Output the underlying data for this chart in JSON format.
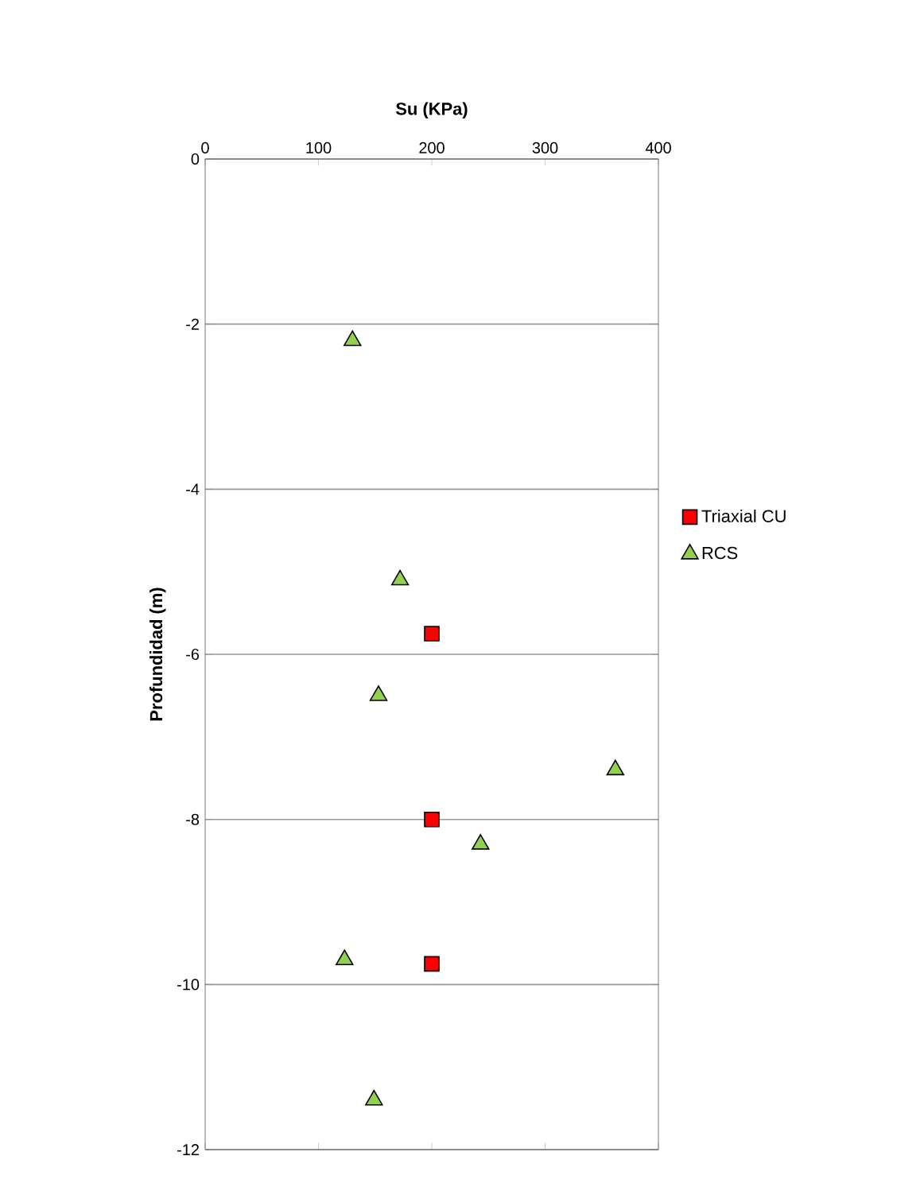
{
  "chart_data": {
    "type": "scatter",
    "xlabel": "Su (KPa)",
    "ylabel": "Profundidad (m)",
    "xlim": [
      0,
      400
    ],
    "xticks": [
      0,
      100,
      200,
      300,
      400
    ],
    "ylim": [
      -12,
      0
    ],
    "yticks": [
      -12,
      -10,
      -8,
      -6,
      -4,
      -2,
      0
    ],
    "grid": "y",
    "legend": "right",
    "series": [
      {
        "name": "Triaxial CU",
        "color": "#ff0000",
        "marker": "square",
        "x": [
          200,
          200,
          200
        ],
        "values": [
          -5.75,
          -8,
          -9.75
        ]
      },
      {
        "name": "RCS",
        "color": "#92d050",
        "marker": "triangle",
        "x": [
          130,
          172,
          153,
          362,
          243,
          123,
          149
        ],
        "values": [
          -2.2,
          -5.1,
          -6.5,
          -7.4,
          -8.3,
          -9.7,
          -11.4
        ]
      }
    ]
  }
}
